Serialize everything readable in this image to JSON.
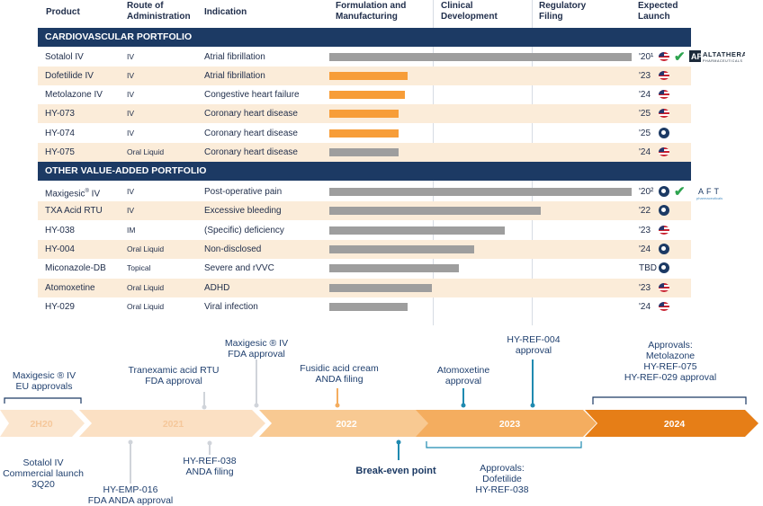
{
  "headers": {
    "product": "Product",
    "route": "Route of Administration",
    "indication": "Indication",
    "formulation": "Formulation and Manufacturing",
    "clinical": "Clinical Development",
    "regulatory": "Regulatory Filing",
    "launch": "Expected Launch"
  },
  "sections": {
    "cardio": "CARDIOVASCULAR PORTFOLIO",
    "other": "OTHER VALUE-ADDED PORTFOLIO"
  },
  "cardio_rows": [
    {
      "product": "Sotalol IV",
      "route": "IV",
      "indication": "Atrial fibrillation",
      "launch": "'20¹",
      "market": "us",
      "progress": 1.0,
      "bar": "gray",
      "approved": true
    },
    {
      "product": "Dofetilide IV",
      "route": "IV",
      "indication": "Atrial fibrillation",
      "launch": "'23",
      "market": "us",
      "progress": 0.26,
      "bar": "orange",
      "approved": false
    },
    {
      "product": "Metolazone IV",
      "route": "IV",
      "indication": "Congestive heart failure",
      "launch": "'24",
      "market": "us",
      "progress": 0.25,
      "bar": "orange",
      "approved": false
    },
    {
      "product": "HY-073",
      "route": "IV",
      "indication": "Coronary heart disease",
      "launch": "'25",
      "market": "us",
      "progress": 0.23,
      "bar": "orange",
      "approved": false
    },
    {
      "product": "HY-074",
      "route": "IV",
      "indication": "Coronary heart disease",
      "launch": "'25",
      "market": "global",
      "progress": 0.23,
      "bar": "orange",
      "approved": false
    },
    {
      "product": "HY-075",
      "route": "Oral Liquid",
      "indication": "Coronary heart disease",
      "launch": "'24",
      "market": "us",
      "progress": 0.23,
      "bar": "gray",
      "approved": false
    }
  ],
  "other_rows": [
    {
      "product": "Maxigesic",
      "product_sup": "®",
      "product_suffix": " IV",
      "route": "IV",
      "indication": "Post-operative pain",
      "launch": "'20²",
      "market": "global",
      "progress": 1.0,
      "bar": "gray",
      "approved": true
    },
    {
      "product": "TXA Acid RTU",
      "route": "IV",
      "indication": "Excessive bleeding",
      "launch": "'22",
      "market": "global",
      "progress": 0.7,
      "bar": "gray",
      "approved": false
    },
    {
      "product": "HY-038",
      "route": "IM",
      "indication": "(Specific) deficiency",
      "launch": "'23",
      "market": "us",
      "progress": 0.58,
      "bar": "gray",
      "approved": false
    },
    {
      "product": "HY-004",
      "route": "Oral Liquid",
      "indication": "Non-disclosed",
      "launch": "'24",
      "market": "global",
      "progress": 0.48,
      "bar": "gray",
      "approved": false
    },
    {
      "product": "Miconazole-DB",
      "route": "Topical",
      "indication": "Severe and rVVC",
      "launch": "TBD",
      "market": "global",
      "progress": 0.43,
      "bar": "gray",
      "approved": false
    },
    {
      "product": "Atomoxetine",
      "route": "Oral Liquid",
      "indication": "ADHD",
      "launch": "'23",
      "market": "us",
      "progress": 0.34,
      "bar": "gray",
      "approved": false
    },
    {
      "product": "HY-029",
      "route": "Oral Liquid",
      "indication": "Viral infection",
      "launch": "'24",
      "market": "us",
      "progress": 0.26,
      "bar": "gray",
      "approved": false
    }
  ],
  "logos": {
    "altathera": "ALTATHERA",
    "altathera_sub": "PHARMACEUTICALS",
    "aft": "AFT",
    "aft_sub": "pharmaceuticals"
  },
  "timeline": {
    "periods": [
      "2H20",
      "2021",
      "2022",
      "2023",
      "2024"
    ],
    "above": [
      {
        "lines": [
          "Maxigesic ® IV",
          "EU approvals"
        ]
      },
      {
        "lines": [
          "Tranexamic acid RTU",
          "FDA approval"
        ]
      },
      {
        "lines": [
          "Maxigesic ® IV",
          "FDA approval"
        ]
      },
      {
        "lines": [
          "Fusidic acid cream",
          "ANDA filing"
        ]
      },
      {
        "lines": [
          "Atomoxetine",
          "approval"
        ]
      },
      {
        "lines": [
          "HY-REF-004",
          "approval"
        ]
      },
      {
        "lines": [
          "Approvals:",
          "Metolazone",
          "HY-REF-075",
          "HY-REF-029 approval"
        ]
      }
    ],
    "below": [
      {
        "lines": [
          "Sotalol IV",
          "Commercial launch",
          "3Q20"
        ]
      },
      {
        "lines": [
          "HY-EMP-016",
          "FDA ANDA approval"
        ]
      },
      {
        "lines": [
          "HY-REF-038",
          "ANDA filing"
        ]
      },
      {
        "lines": [
          "Break-even point"
        ]
      },
      {
        "lines": [
          "Approvals:",
          "Dofetilide",
          "HY-REF-038"
        ]
      }
    ]
  },
  "colors": {
    "navy": "#1c3a64",
    "stripe": "#fbecd9",
    "orange_bar": "#f79d38",
    "gray_bar": "#9e9e9e",
    "seg_2h20": "#fbe6cf",
    "seg_2021": "#fbe0c3",
    "seg_2022": "#f8c992",
    "seg_2023": "#f4ad5f",
    "seg_2024": "#e67e17"
  }
}
